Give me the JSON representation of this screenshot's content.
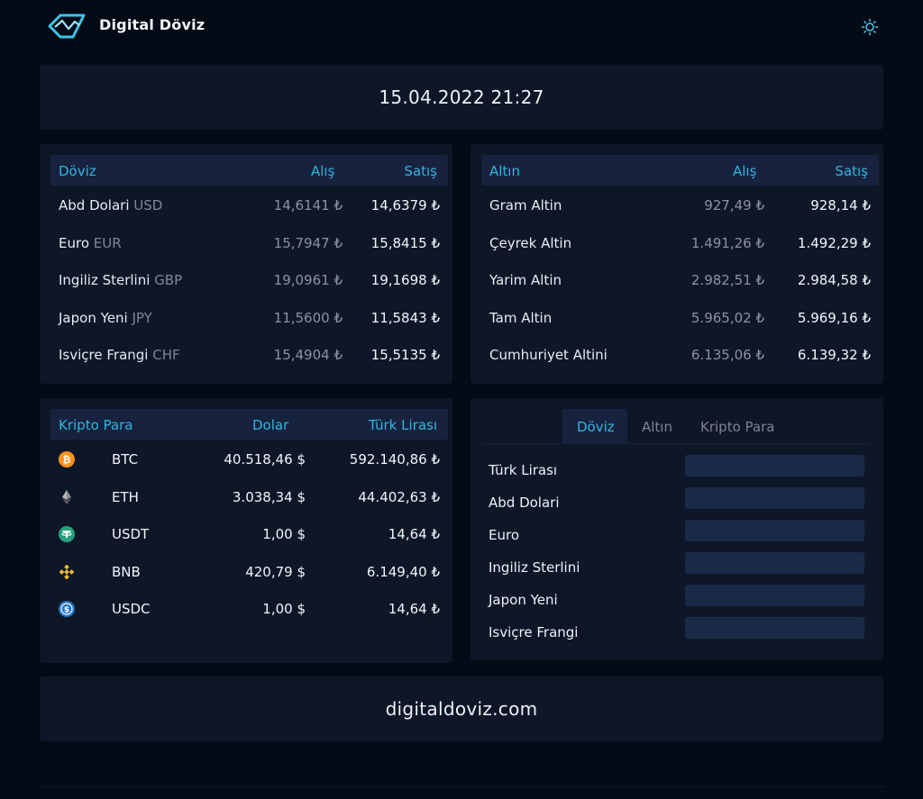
{
  "header": {
    "brand": "Digital Döviz",
    "logo_icon": "logo-icon",
    "theme_icon": "sun-icon"
  },
  "datetime": "15.04.2022 21:27",
  "doviz": {
    "title": "Döviz",
    "buy_label": "Alış",
    "sell_label": "Satış",
    "rows": [
      {
        "name": "Abd Dolari",
        "code": "USD",
        "buy": "14,6141 ₺",
        "sell": "14,6379 ₺"
      },
      {
        "name": "Euro",
        "code": "EUR",
        "buy": "15,7947 ₺",
        "sell": "15,8415 ₺"
      },
      {
        "name": "Ingiliz Sterlini",
        "code": "GBP",
        "buy": "19,0961 ₺",
        "sell": "19,1698 ₺"
      },
      {
        "name": "Japon Yeni",
        "code": "JPY",
        "buy": "11,5600 ₺",
        "sell": "11,5843 ₺"
      },
      {
        "name": "Isviçre Frangi",
        "code": "CHF",
        "buy": "15,4904 ₺",
        "sell": "15,5135 ₺"
      }
    ]
  },
  "altin": {
    "title": "Altın",
    "buy_label": "Alış",
    "sell_label": "Satış",
    "rows": [
      {
        "name": "Gram Altin",
        "buy": "927,49 ₺",
        "sell": "928,14 ₺"
      },
      {
        "name": "Çeyrek Altin",
        "buy": "1.491,26 ₺",
        "sell": "1.492,29 ₺"
      },
      {
        "name": "Yarim Altin",
        "buy": "2.982,51 ₺",
        "sell": "2.984,58 ₺"
      },
      {
        "name": "Tam Altin",
        "buy": "5.965,02 ₺",
        "sell": "5.969,16 ₺"
      },
      {
        "name": "Cumhuriyet Altini",
        "buy": "6.135,06 ₺",
        "sell": "6.139,32 ₺"
      }
    ]
  },
  "kripto": {
    "title": "Kripto Para",
    "usd_label": "Dolar",
    "try_label": "Türk Lirası",
    "rows": [
      {
        "symbol": "BTC",
        "icon": "bitcoin-icon",
        "color": "#f7931a",
        "usd": "40.518,46 $",
        "try": "592.140,86 ₺"
      },
      {
        "symbol": "ETH",
        "icon": "ethereum-icon",
        "color": "#8c8c8c",
        "usd": "3.038,34 $",
        "try": "44.402,63 ₺"
      },
      {
        "symbol": "USDT",
        "icon": "tether-icon",
        "color": "#26a17b",
        "usd": "1,00 $",
        "try": "14,64 ₺"
      },
      {
        "symbol": "BNB",
        "icon": "binance-icon",
        "color": "#f3ba2f",
        "usd": "420,79 $",
        "try": "6.149,40 ₺"
      },
      {
        "symbol": "USDC",
        "icon": "usdc-icon",
        "color": "#2775ca",
        "usd": "1,00 $",
        "try": "14,64 ₺"
      }
    ]
  },
  "converter": {
    "tabs": [
      {
        "label": "Döviz",
        "active": true
      },
      {
        "label": "Altın",
        "active": false
      },
      {
        "label": "Kripto Para",
        "active": false
      }
    ],
    "fields": [
      {
        "label": "Türk Lirası",
        "value": ""
      },
      {
        "label": "Abd Dolari",
        "value": ""
      },
      {
        "label": "Euro",
        "value": ""
      },
      {
        "label": "Ingiliz Sterlini",
        "value": ""
      },
      {
        "label": "Japon Yeni",
        "value": ""
      },
      {
        "label": "Isviçre Frangi",
        "value": ""
      }
    ]
  },
  "footer": {
    "site": "digitaldoviz.com"
  },
  "colors": {
    "accent": "#33b5dd",
    "background": "#050b16",
    "card": "#0e1727",
    "header_row": "#17223e",
    "input": "#192a47"
  }
}
